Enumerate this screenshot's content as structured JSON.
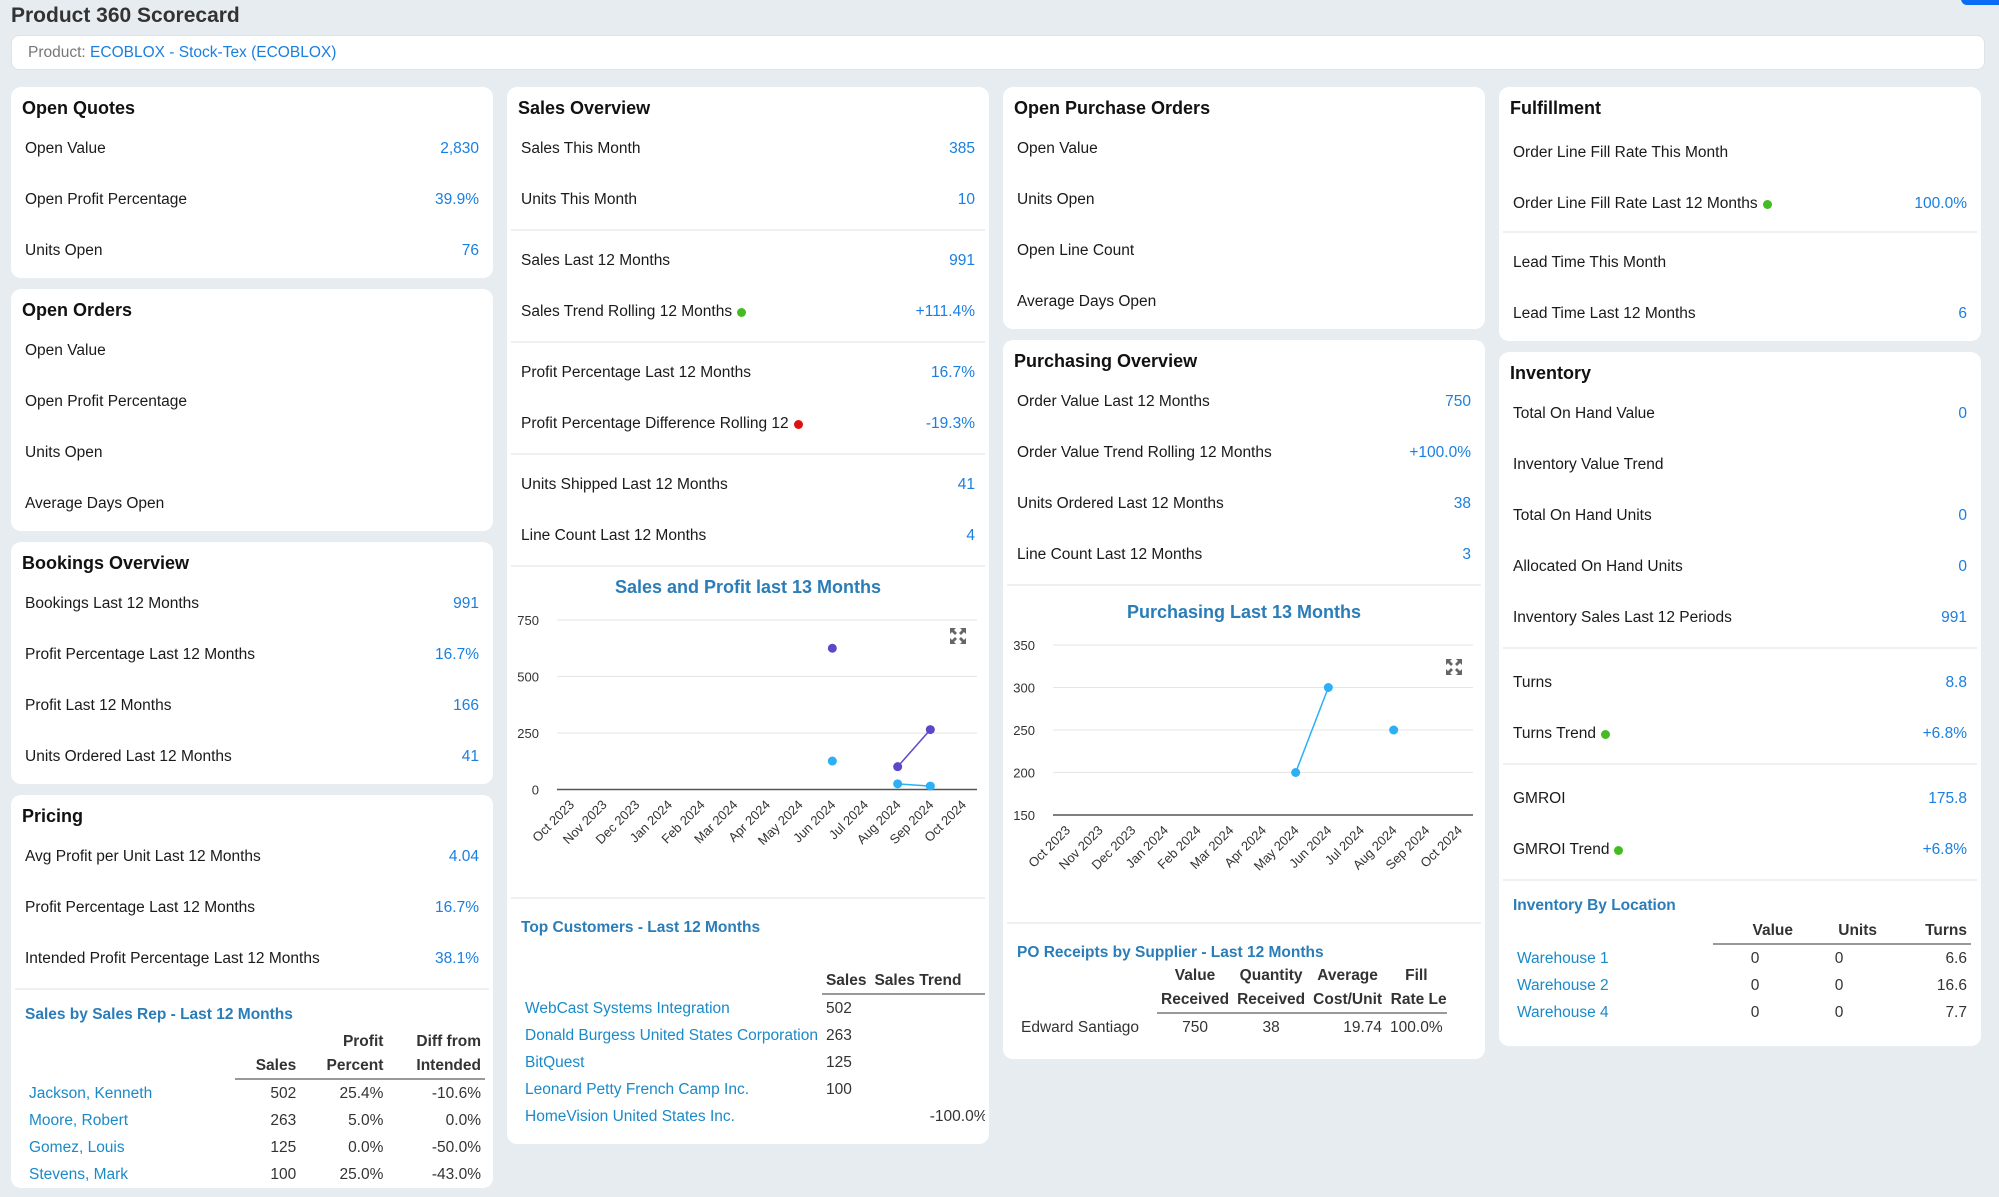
{
  "page": {
    "title": "Product 360 Scorecard",
    "product_label": "Product:",
    "product_value": "ECOBLOX - Stock-Tex (ECOBLOX)"
  },
  "colors": {
    "link_blue": "#1a7fe0",
    "section_blue": "#2a7db8",
    "green_status": "#44bb22",
    "red_status": "#dd1111",
    "sales_series": "#5b48c9",
    "profit_series": "#2bb0f5",
    "background": "#e6ecf0"
  },
  "open_quotes": {
    "title": "Open Quotes",
    "rows": [
      {
        "label": "Open Value",
        "value": "2,830"
      },
      {
        "label": "Open Profit Percentage",
        "value": "39.9%"
      },
      {
        "label": "Units Open",
        "value": "76"
      }
    ]
  },
  "open_orders": {
    "title": "Open Orders",
    "rows": [
      {
        "label": "Open Value",
        "value": ""
      },
      {
        "label": "Open Profit Percentage",
        "value": ""
      },
      {
        "label": "Units Open",
        "value": ""
      },
      {
        "label": "Average Days Open",
        "value": ""
      }
    ]
  },
  "bookings_overview": {
    "title": "Bookings Overview",
    "rows": [
      {
        "label": "Bookings Last 12 Months",
        "value": "991"
      },
      {
        "label": "Profit Percentage Last 12 Months",
        "value": "16.7%"
      },
      {
        "label": "Profit Last 12 Months",
        "value": "166"
      },
      {
        "label": "Units Ordered Last 12 Months",
        "value": "41"
      }
    ]
  },
  "pricing": {
    "title": "Pricing",
    "rows": [
      {
        "label": "Avg Profit per Unit Last 12 Months",
        "value": "4.04"
      },
      {
        "label": "Profit Percentage Last 12 Months",
        "value": "16.7%"
      },
      {
        "label": "Intended Profit Percentage Last 12 Months",
        "value": "38.1%"
      }
    ],
    "sales_by_rep": {
      "title": "Sales by Sales Rep - Last 12 Months",
      "headers_top": [
        "",
        "",
        "Profit",
        "Diff from"
      ],
      "headers_bottom": [
        "",
        "Sales",
        "Percent",
        "Intended"
      ],
      "rows": [
        {
          "name": "Jackson, Kenneth",
          "sales": "502",
          "profit_percent": "25.4%",
          "diff": "-10.6%"
        },
        {
          "name": "Moore, Robert",
          "sales": "263",
          "profit_percent": "5.0%",
          "diff": "0.0%"
        },
        {
          "name": "Gomez, Louis",
          "sales": "125",
          "profit_percent": "0.0%",
          "diff": "-50.0%"
        },
        {
          "name": "Stevens, Mark",
          "sales": "100",
          "profit_percent": "25.0%",
          "diff": "-43.0%"
        }
      ]
    }
  },
  "sales_overview": {
    "title": "Sales Overview",
    "group1": [
      {
        "label": "Sales This Month",
        "value": "385"
      },
      {
        "label": "Units This Month",
        "value": "10"
      }
    ],
    "group2": [
      {
        "label": "Sales Last 12 Months",
        "value": "991"
      },
      {
        "label": "Sales Trend Rolling 12 Months",
        "value": "+111.4%",
        "status": "green"
      }
    ],
    "group3": [
      {
        "label": "Profit Percentage Last 12 Months",
        "value": "16.7%"
      },
      {
        "label": "Profit Percentage Difference Rolling 12",
        "value": "-19.3%",
        "status": "red"
      }
    ],
    "group4": [
      {
        "label": "Units Shipped Last 12 Months",
        "value": "41"
      },
      {
        "label": "Line Count Last 12 Months",
        "value": "4"
      }
    ],
    "top_customers": {
      "title": "Top Customers - Last 12 Months",
      "headers": [
        "",
        "Sales",
        "Sales Trend"
      ],
      "rows": [
        {
          "name": "WebCast Systems Integration",
          "sales": "502",
          "trend": ""
        },
        {
          "name": "Donald Burgess United States Corporation",
          "sales": "263",
          "trend": ""
        },
        {
          "name": "BitQuest",
          "sales": "125",
          "trend": ""
        },
        {
          "name": "Leonard Petty French Camp Inc.",
          "sales": "100",
          "trend": ""
        },
        {
          "name": "HomeVision United States Inc.",
          "sales": "",
          "trend": "-100.0%"
        }
      ]
    }
  },
  "open_purchase_orders": {
    "title": "Open Purchase Orders",
    "rows": [
      {
        "label": "Open Value",
        "value": ""
      },
      {
        "label": "Units Open",
        "value": ""
      },
      {
        "label": "Open Line Count",
        "value": ""
      },
      {
        "label": "Average Days Open",
        "value": ""
      }
    ]
  },
  "purchasing_overview": {
    "title": "Purchasing Overview",
    "rows": [
      {
        "label": "Order Value Last 12 Months",
        "value": "750"
      },
      {
        "label": "Order Value Trend Rolling 12 Months",
        "value": "+100.0%"
      },
      {
        "label": "Units Ordered Last 12 Months",
        "value": "38"
      },
      {
        "label": "Line Count Last 12 Months",
        "value": "3"
      }
    ],
    "po_receipts": {
      "title": "PO Receipts by Supplier - Last 12 Months",
      "headers_top": [
        "",
        "Value",
        "Quantity",
        "Average",
        "Fill"
      ],
      "headers_bottom": [
        "",
        "Received",
        "Received",
        "Cost/Unit",
        "Rate Le"
      ],
      "rows": [
        {
          "name": "Edward Santiago",
          "value": "750",
          "quantity": "38",
          "avg_cost": "19.74",
          "fill_rate": "100.0%"
        }
      ]
    }
  },
  "fulfillment": {
    "title": "Fulfillment",
    "group1": [
      {
        "label": "Order Line Fill Rate This Month",
        "value": ""
      },
      {
        "label": "Order Line Fill Rate Last 12 Months",
        "value": "100.0%",
        "status": "green"
      }
    ],
    "group2": [
      {
        "label": "Lead Time This Month",
        "value": ""
      },
      {
        "label": "Lead Time Last 12 Months",
        "value": "6"
      }
    ]
  },
  "inventory": {
    "title": "Inventory",
    "group1": [
      {
        "label": "Total On Hand Value",
        "value": "0"
      },
      {
        "label": "Inventory Value Trend",
        "value": ""
      },
      {
        "label": "Total On Hand Units",
        "value": "0"
      },
      {
        "label": "Allocated On Hand Units",
        "value": "0"
      },
      {
        "label": "Inventory Sales Last 12 Periods",
        "value": "991"
      }
    ],
    "group2": [
      {
        "label": "Turns",
        "value": "8.8"
      },
      {
        "label": "Turns Trend",
        "value": "+6.8%",
        "status": "green"
      }
    ],
    "group3": [
      {
        "label": "GMROI",
        "value": "175.8"
      },
      {
        "label": "GMROI Trend",
        "value": "+6.8%",
        "status": "green"
      }
    ],
    "by_location": {
      "title": "Inventory By Location",
      "headers": [
        "",
        "Value",
        "Units",
        "Turns"
      ],
      "rows": [
        {
          "name": "Warehouse 1",
          "value": "0",
          "units": "0",
          "turns": "6.6"
        },
        {
          "name": "Warehouse 2",
          "value": "0",
          "units": "0",
          "turns": "16.6"
        },
        {
          "name": "Warehouse 4",
          "value": "0",
          "units": "0",
          "turns": "7.7"
        }
      ]
    }
  },
  "chart_data": [
    {
      "type": "line",
      "title": "Sales and Profit last 13 Months",
      "categories": [
        "Oct 2023",
        "Nov 2023",
        "Dec 2023",
        "Jan 2024",
        "Feb 2024",
        "Mar 2024",
        "Apr 2024",
        "May 2024",
        "Jun 2024",
        "Jul 2024",
        "Aug 2024",
        "Sep 2024",
        "Oct 2024"
      ],
      "series": [
        {
          "name": "Sales",
          "color": "#5b48c9",
          "values": [
            null,
            null,
            null,
            null,
            null,
            null,
            null,
            null,
            625,
            null,
            101,
            265,
            null
          ]
        },
        {
          "name": "Profit",
          "color": "#2bb0f5",
          "values": [
            null,
            null,
            null,
            null,
            null,
            null,
            null,
            null,
            126,
            null,
            25,
            15,
            null
          ]
        }
      ],
      "yticks": [
        0,
        250,
        500,
        750
      ],
      "ylim": [
        0,
        750
      ],
      "xlabel": "",
      "ylabel": "",
      "grid": true,
      "legend": "none"
    },
    {
      "type": "line",
      "title": "Purchasing Last 13 Months",
      "categories": [
        "Oct 2023",
        "Nov 2023",
        "Dec 2023",
        "Jan 2024",
        "Feb 2024",
        "Mar 2024",
        "Apr 2024",
        "May 2024",
        "Jun 2024",
        "Jul 2024",
        "Aug 2024",
        "Sep 2024",
        "Oct 2024"
      ],
      "series": [
        {
          "name": "Purchasing",
          "color": "#2bb0f5",
          "values": [
            null,
            null,
            null,
            null,
            null,
            null,
            null,
            200,
            300,
            null,
            250,
            null,
            null
          ]
        }
      ],
      "yticks": [
        150,
        200,
        250,
        300,
        350
      ],
      "ylim": [
        150,
        350
      ],
      "xlabel": "",
      "ylabel": "",
      "grid": true,
      "legend": "none"
    }
  ]
}
